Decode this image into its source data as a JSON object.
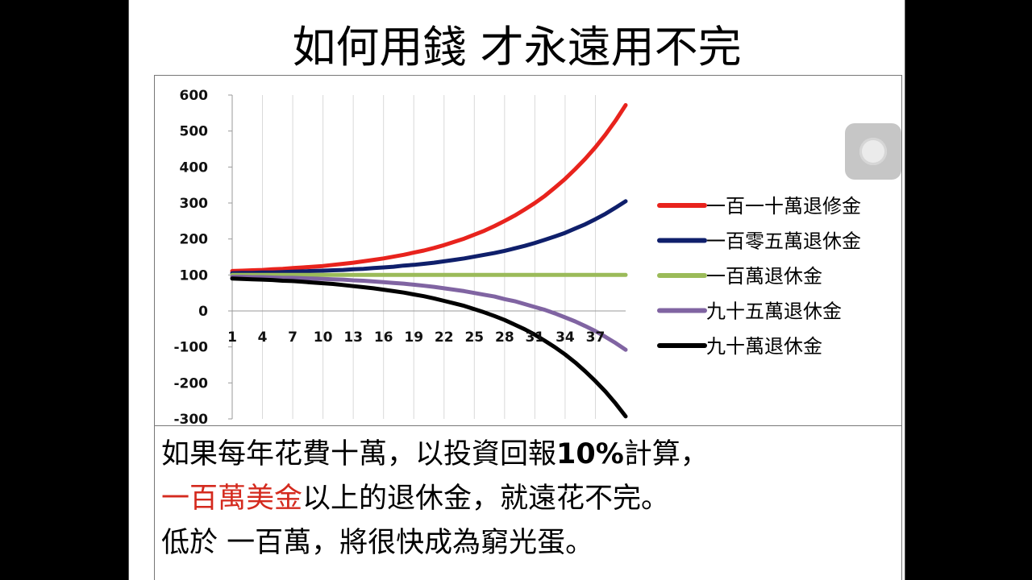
{
  "slide": {
    "title": "如何用錢 才永遠用不完",
    "caption": {
      "line1_text": "如果每年花費十萬，以投資回報",
      "line1_bold": "10%",
      "line1_tail": "計算，",
      "line2_red": "一百萬美金",
      "line2_tail": "以上的退休金，就遠花不完。",
      "line3": "低於 一百萬，將很快成為窮光蛋。"
    }
  },
  "chart_data": {
    "type": "line",
    "title": "",
    "xlabel": "",
    "ylabel": "",
    "ylim": [
      -300,
      600
    ],
    "yticks": [
      600,
      500,
      400,
      300,
      200,
      100,
      0,
      -100,
      -200,
      -300
    ],
    "x": [
      1,
      2,
      3,
      4,
      5,
      6,
      7,
      8,
      9,
      10,
      11,
      12,
      13,
      14,
      15,
      16,
      17,
      18,
      19,
      20,
      21,
      22,
      23,
      24,
      25,
      26,
      27,
      28,
      29,
      30,
      31,
      32,
      33,
      34,
      35,
      36,
      37,
      38,
      39,
      40
    ],
    "xtick_labels": [
      "1",
      "4",
      "7",
      "10",
      "13",
      "16",
      "19",
      "22",
      "25",
      "28",
      "31",
      "34",
      "37"
    ],
    "grid": "vertical",
    "legend_position": "right",
    "series": [
      {
        "name": "一百一十萬退修金",
        "color": "#e8231d",
        "values": [
          111,
          112,
          113,
          114,
          116,
          117,
          119,
          121,
          123,
          125,
          128,
          131,
          134,
          138,
          142,
          146,
          151,
          156,
          162,
          168,
          175,
          183,
          192,
          201,
          212,
          223,
          236,
          250,
          265,
          282,
          300,
          320,
          343,
          367,
          394,
          423,
          455,
          490,
          529,
          572
        ]
      },
      {
        "name": "一百零五萬退休金",
        "color": "#0f1f6b",
        "values": [
          105,
          106,
          106,
          107,
          107,
          108,
          109,
          110,
          111,
          112,
          113,
          114,
          116,
          117,
          119,
          121,
          123,
          126,
          128,
          131,
          134,
          138,
          142,
          146,
          151,
          156,
          161,
          167,
          174,
          181,
          189,
          198,
          207,
          217,
          229,
          241,
          255,
          270,
          287,
          305
        ]
      },
      {
        "name": "一百萬退休金",
        "color": "#9bbb59",
        "values": [
          100,
          100,
          100,
          100,
          100,
          100,
          100,
          100,
          100,
          100,
          100,
          100,
          100,
          100,
          100,
          100,
          100,
          100,
          100,
          100,
          100,
          100,
          100,
          100,
          100,
          100,
          100,
          100,
          100,
          100,
          100,
          100,
          100,
          100,
          100,
          100,
          100,
          100,
          100,
          100
        ]
      },
      {
        "name": "九十五萬退休金",
        "color": "#8064a2",
        "values": [
          95,
          95,
          94,
          94,
          93,
          92,
          92,
          91,
          90,
          89,
          88,
          87,
          85,
          84,
          82,
          80,
          78,
          76,
          73,
          70,
          67,
          63,
          59,
          55,
          50,
          45,
          40,
          33,
          27,
          19,
          11,
          3,
          -7,
          -18,
          -29,
          -42,
          -56,
          -72,
          -89,
          -108
        ]
      },
      {
        "name": "九十萬退休金",
        "color": "#000000",
        "values": [
          90,
          89,
          88,
          87,
          86,
          84,
          83,
          81,
          79,
          77,
          75,
          72,
          69,
          66,
          63,
          59,
          55,
          51,
          46,
          41,
          35,
          28,
          21,
          14,
          5,
          -4,
          -14,
          -25,
          -38,
          -51,
          -66,
          -83,
          -101,
          -121,
          -143,
          -168,
          -195,
          -224,
          -257,
          -293
        ]
      }
    ]
  },
  "widget": {
    "icon": "floating-assistive-touch-icon"
  }
}
